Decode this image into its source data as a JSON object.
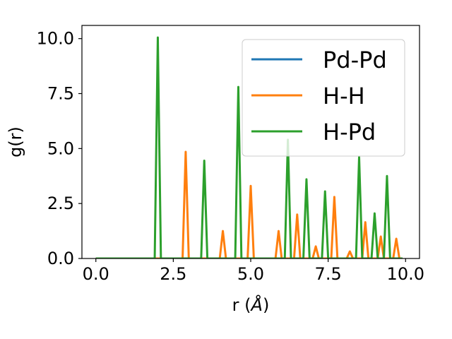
{
  "chart_data": {
    "type": "line",
    "xlabel_prefix": "r (",
    "xlabel_unit": "Å",
    "xlabel_suffix": ")",
    "ylabel": "g(r)",
    "xlim": [
      -0.45,
      10.45
    ],
    "ylim": [
      0.0,
      10.6
    ],
    "xticks": [
      0.0,
      2.5,
      5.0,
      7.5,
      10.0
    ],
    "yticks": [
      0.0,
      2.5,
      5.0,
      7.5,
      10.0
    ],
    "xtick_labels": [
      "0.0",
      "2.5",
      "5.0",
      "7.5",
      "10.0"
    ],
    "ytick_labels": [
      "0.0",
      "2.5",
      "5.0",
      "7.5",
      "10.0"
    ],
    "grid": false,
    "legend_position": "upper right",
    "series": [
      {
        "name": "Pd-Pd",
        "color": "#1f77b4",
        "x": [
          0.0,
          9.9
        ],
        "y": [
          0.0,
          0.0
        ]
      },
      {
        "name": "H-H",
        "color": "#ff7f0e",
        "x": [
          0.0,
          2.8,
          2.9,
          3.0,
          4.0,
          4.1,
          4.2,
          4.9,
          5.0,
          5.1,
          5.8,
          5.9,
          6.0,
          6.4,
          6.5,
          6.6,
          7.0,
          7.1,
          7.2,
          7.6,
          7.7,
          7.8,
          8.1,
          8.2,
          8.3,
          8.6,
          8.7,
          8.8,
          9.1,
          9.2,
          9.3,
          9.6,
          9.7,
          9.8,
          9.9
        ],
        "y": [
          0.0,
          0.0,
          4.85,
          0.0,
          0.0,
          1.25,
          0.0,
          0.0,
          3.3,
          0.0,
          0.0,
          1.25,
          0.0,
          0.0,
          2.0,
          0.0,
          0.0,
          0.55,
          0.0,
          0.0,
          2.8,
          0.0,
          0.0,
          0.32,
          0.0,
          0.0,
          1.65,
          0.0,
          0.0,
          1.0,
          0.0,
          0.0,
          0.9,
          0.0,
          0.0
        ]
      },
      {
        "name": "H-Pd",
        "color": "#2ca02c",
        "x": [
          0.0,
          1.9,
          2.0,
          2.1,
          3.4,
          3.5,
          3.6,
          4.5,
          4.6,
          4.7,
          6.1,
          6.2,
          6.3,
          6.7,
          6.8,
          6.9,
          7.3,
          7.4,
          7.5,
          8.4,
          8.5,
          8.6,
          8.9,
          9.0,
          9.1,
          9.3,
          9.4,
          9.5,
          9.9
        ],
        "y": [
          0.0,
          0.0,
          10.05,
          0.0,
          0.0,
          4.45,
          0.0,
          0.0,
          7.8,
          0.0,
          0.0,
          5.4,
          0.0,
          0.0,
          3.6,
          0.0,
          0.0,
          3.05,
          0.0,
          0.0,
          4.6,
          0.0,
          0.0,
          2.05,
          0.0,
          0.0,
          3.75,
          0.0,
          0.0
        ]
      }
    ]
  }
}
